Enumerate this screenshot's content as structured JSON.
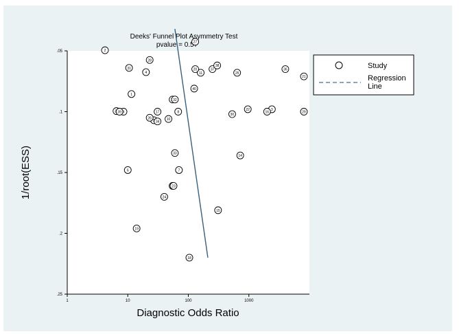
{
  "chart_data": {
    "type": "scatter",
    "title": "Deeks' Funnel Plot Asymmetry Test",
    "subtitle": "pvalue  =  0.57",
    "xlabel": "Diagnostic Odds Ratio",
    "ylabel": "1/root(ESS)",
    "x_scale": "log",
    "xlim": [
      1,
      10000
    ],
    "ylim": [
      0.05,
      0.25
    ],
    "y_axis_reversed": true,
    "x_ticks": [
      1,
      10,
      100,
      1000
    ],
    "x_tick_labels": [
      "1",
      "10",
      "100",
      "1000"
    ],
    "y_ticks": [
      0.05,
      0.1,
      0.15,
      0.2,
      0.25
    ],
    "y_tick_labels": [
      ".05",
      ".1",
      ".15",
      ".2",
      ".25"
    ],
    "legend": {
      "position": "right",
      "entries": [
        {
          "label": "Study",
          "marker": "circle"
        },
        {
          "label": "Regression Line",
          "marker": "dashed-line"
        }
      ]
    },
    "regression_line": {
      "x": [
        60,
        210
      ],
      "y": [
        0.032,
        0.22
      ]
    },
    "studies": [
      {
        "id": "1",
        "x": 11.5,
        "y": 0.0855
      },
      {
        "id": "2",
        "x": 4.2,
        "y": 0.0495
      },
      {
        "id": "3",
        "x": 2400,
        "y": 0.098
      },
      {
        "id": "4",
        "x": 20,
        "y": 0.0675
      },
      {
        "id": "5",
        "x": 27,
        "y": 0.107
      },
      {
        "id": "6",
        "x": 10,
        "y": 0.148
      },
      {
        "id": "7",
        "x": 70,
        "y": 0.148
      },
      {
        "id": "8",
        "x": 68,
        "y": 0.1
      },
      {
        "id": "9",
        "x": 8.5,
        "y": 0.1
      },
      {
        "id": "10",
        "x": 47,
        "y": 0.106
      },
      {
        "id": "11",
        "x": 160,
        "y": 0.068
      },
      {
        "id": "12",
        "x": 55,
        "y": 0.161
      },
      {
        "id": "13",
        "x": 55,
        "y": 0.09
      },
      {
        "id": "14",
        "x": 720,
        "y": 0.136
      },
      {
        "id": "15",
        "x": 310,
        "y": 0.181
      },
      {
        "id": "16",
        "x": 2000,
        "y": 0.1
      },
      {
        "id": "17",
        "x": 31,
        "y": 0.1
      },
      {
        "id": "18",
        "x": 104,
        "y": 0.22
      },
      {
        "id": "19",
        "x": 14,
        "y": 0.196
      },
      {
        "id": "20",
        "x": 130,
        "y": 0.065
      },
      {
        "id": "21",
        "x": 8100,
        "y": 0.071
      },
      {
        "id": "22",
        "x": 960,
        "y": 0.098
      },
      {
        "id": "23",
        "x": 57,
        "y": 0.161
      },
      {
        "id": "24",
        "x": 40,
        "y": 0.17
      },
      {
        "id": "25",
        "x": 640,
        "y": 0.068
      },
      {
        "id": "26",
        "x": 23,
        "y": 0.105
      },
      {
        "id": "27",
        "x": 130,
        "y": 0.0425
      },
      {
        "id": "28",
        "x": 23,
        "y": 0.0575
      },
      {
        "id": "29",
        "x": 8100,
        "y": 0.1
      },
      {
        "id": "30",
        "x": 530,
        "y": 0.102
      },
      {
        "id": "31",
        "x": 10.5,
        "y": 0.064
      },
      {
        "id": "32",
        "x": 60,
        "y": 0.09
      },
      {
        "id": "33",
        "x": 60,
        "y": 0.134
      },
      {
        "id": "34",
        "x": 31,
        "y": 0.108
      },
      {
        "id": "35",
        "x": 6.5,
        "y": 0.0995
      },
      {
        "id": "36",
        "x": 4000,
        "y": 0.065
      },
      {
        "id": "37",
        "x": 250,
        "y": 0.065
      },
      {
        "id": "38",
        "x": 300,
        "y": 0.062
      },
      {
        "id": "39",
        "x": 7.3,
        "y": 0.1
      },
      {
        "id": "40",
        "x": 125,
        "y": 0.081
      }
    ]
  }
}
